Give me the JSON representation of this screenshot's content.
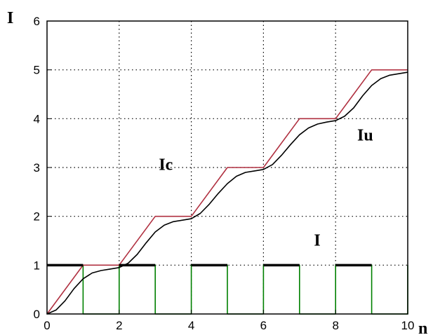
{
  "chart_data": {
    "type": "line",
    "title": "",
    "xlabel": "n",
    "ylabel": "I",
    "xlim": [
      0,
      10
    ],
    "ylim": [
      0,
      6
    ],
    "xticks": [
      0,
      2,
      4,
      6,
      8,
      10
    ],
    "yticks": [
      0,
      1,
      2,
      3,
      4,
      5,
      6
    ],
    "x_tick_labels": [
      "0",
      "2",
      "4",
      "6",
      "8",
      "10"
    ],
    "y_tick_labels": [
      "0",
      "1",
      "2",
      "3",
      "4",
      "5",
      "6"
    ],
    "grid": true,
    "series": [
      {
        "name": "I",
        "color": "#008000",
        "points": [
          [
            0,
            1
          ],
          [
            1,
            1
          ],
          [
            1,
            0
          ],
          [
            2,
            0
          ],
          [
            2,
            1
          ],
          [
            3,
            1
          ],
          [
            3,
            0
          ],
          [
            4,
            0
          ],
          [
            4,
            1
          ],
          [
            5,
            1
          ],
          [
            5,
            0
          ],
          [
            6,
            0
          ],
          [
            6,
            1
          ],
          [
            7,
            1
          ],
          [
            7,
            0
          ],
          [
            8,
            0
          ],
          [
            8,
            1
          ],
          [
            9,
            1
          ],
          [
            9,
            0
          ],
          [
            10,
            0
          ],
          [
            10,
            1
          ]
        ]
      },
      {
        "name": "Ic",
        "color": "#b03040",
        "points": [
          [
            0,
            0
          ],
          [
            1,
            1
          ],
          [
            2,
            1
          ],
          [
            3,
            2
          ],
          [
            4,
            2
          ],
          [
            5,
            3
          ],
          [
            6,
            3
          ],
          [
            7,
            4
          ],
          [
            8,
            4
          ],
          [
            9,
            5
          ],
          [
            10,
            5
          ]
        ]
      },
      {
        "name": "Iu",
        "color": "#000000",
        "points": [
          [
            0,
            0
          ],
          [
            0.25,
            0.08
          ],
          [
            0.5,
            0.27
          ],
          [
            0.75,
            0.52
          ],
          [
            1,
            0.72
          ],
          [
            1.25,
            0.84
          ],
          [
            1.5,
            0.89
          ],
          [
            1.75,
            0.92
          ],
          [
            2,
            0.95
          ],
          [
            2.25,
            1.04
          ],
          [
            2.5,
            1.22
          ],
          [
            2.75,
            1.46
          ],
          [
            3,
            1.68
          ],
          [
            3.25,
            1.82
          ],
          [
            3.5,
            1.89
          ],
          [
            3.75,
            1.92
          ],
          [
            4,
            1.95
          ],
          [
            4.25,
            2.06
          ],
          [
            4.5,
            2.25
          ],
          [
            4.75,
            2.47
          ],
          [
            5,
            2.67
          ],
          [
            5.25,
            2.82
          ],
          [
            5.5,
            2.9
          ],
          [
            5.75,
            2.93
          ],
          [
            6,
            2.96
          ],
          [
            6.25,
            3.06
          ],
          [
            6.5,
            3.25
          ],
          [
            6.75,
            3.47
          ],
          [
            7,
            3.67
          ],
          [
            7.25,
            3.81
          ],
          [
            7.5,
            3.89
          ],
          [
            7.75,
            3.93
          ],
          [
            8,
            3.96
          ],
          [
            8.25,
            4.05
          ],
          [
            8.5,
            4.22
          ],
          [
            8.75,
            4.47
          ],
          [
            9,
            4.68
          ],
          [
            9.25,
            4.82
          ],
          [
            9.5,
            4.89
          ],
          [
            9.75,
            4.92
          ],
          [
            10,
            4.95
          ]
        ]
      }
    ],
    "bold_segments": [
      [
        0,
        1,
        1
      ],
      [
        2,
        3,
        1
      ],
      [
        4,
        5,
        1
      ],
      [
        6,
        7,
        1
      ],
      [
        8,
        9,
        1
      ]
    ],
    "annotations": [
      {
        "text": "Ic",
        "x": 3.1,
        "y": 2.95
      },
      {
        "text": "Iu",
        "x": 8.6,
        "y": 3.55
      },
      {
        "text": "I",
        "x": 7.4,
        "y": 1.4
      }
    ]
  }
}
